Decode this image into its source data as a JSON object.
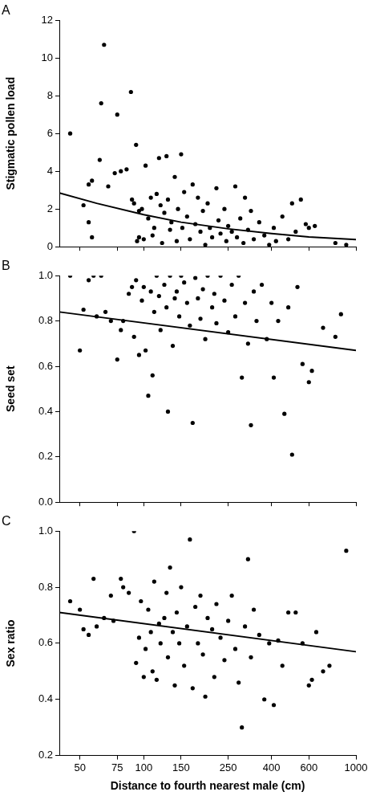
{
  "chart_data": [
    {
      "type": "scatter",
      "title": "A",
      "y_label": "Stigmatic pollen load",
      "log": "x",
      "grid": false,
      "tick_labels": "y",
      "xlim": [
        40,
        1000
      ],
      "xticks": [
        50,
        75,
        100,
        150,
        250,
        400,
        600,
        1000
      ],
      "ylim": [
        0,
        12
      ],
      "yticks": [
        0,
        2,
        4,
        6,
        8,
        10,
        12
      ],
      "series": [
        {
          "type": "scatter",
          "marker": "circle",
          "color": "#000000",
          "x": [
            45,
            52,
            55,
            57,
            55,
            57,
            62,
            63,
            65,
            68,
            73,
            75,
            78,
            83,
            87,
            88,
            90,
            92,
            93,
            95,
            95,
            98,
            100,
            102,
            105,
            108,
            110,
            112,
            115,
            118,
            120,
            122,
            125,
            128,
            130,
            133,
            135,
            140,
            143,
            145,
            150,
            152,
            155,
            160,
            165,
            170,
            175,
            180,
            185,
            190,
            195,
            200,
            205,
            210,
            220,
            225,
            230,
            240,
            245,
            250,
            260,
            270,
            275,
            285,
            295,
            300,
            310,
            320,
            330,
            350,
            370,
            390,
            410,
            420,
            450,
            480,
            500,
            520,
            550,
            580,
            600,
            640,
            800,
            900
          ],
          "values": [
            6.0,
            2.2,
            3.3,
            3.5,
            1.3,
            0.5,
            4.6,
            7.6,
            10.7,
            3.2,
            3.9,
            7.0,
            4.0,
            4.1,
            8.2,
            2.5,
            2.3,
            5.4,
            0.3,
            0.5,
            1.9,
            2.0,
            0.4,
            4.3,
            1.5,
            2.6,
            0.6,
            1.0,
            2.8,
            4.7,
            2.2,
            0.2,
            1.8,
            4.8,
            2.5,
            0.9,
            1.3,
            3.7,
            0.3,
            2.0,
            4.9,
            1.0,
            2.9,
            1.6,
            0.4,
            3.3,
            1.2,
            2.6,
            0.8,
            1.9,
            0.1,
            2.3,
            1.0,
            0.5,
            3.1,
            1.4,
            0.7,
            2.0,
            0.3,
            1.1,
            0.8,
            3.2,
            0.5,
            1.5,
            0.2,
            2.6,
            0.9,
            1.9,
            0.4,
            1.3,
            0.6,
            0.1,
            1.0,
            0.3,
            1.6,
            0.4,
            2.3,
            0.8,
            2.5,
            1.2,
            1.0,
            1.1,
            0.2,
            0.1
          ]
        },
        {
          "type": "line",
          "line_style": "solid",
          "color": "#000000",
          "x": [
            40,
            60,
            100,
            150,
            250,
            400,
            600,
            1000
          ],
          "values": [
            2.85,
            2.3,
            1.7,
            1.3,
            0.95,
            0.7,
            0.52,
            0.38
          ]
        }
      ]
    },
    {
      "type": "scatter",
      "title": "B",
      "y_label": "Seed set",
      "log": "x",
      "grid": false,
      "tick_labels": "y",
      "xlim": [
        40,
        1000
      ],
      "xticks": [
        50,
        75,
        100,
        150,
        250,
        400,
        600,
        1000
      ],
      "ylim": [
        0,
        1
      ],
      "yticks": [
        {
          "value": 0,
          "label": "0.0"
        },
        0.2,
        0.4,
        0.6,
        0.8,
        {
          "value": 1,
          "label": "1.0"
        }
      ],
      "series": [
        {
          "type": "scatter",
          "marker": "circle",
          "color": "#000000",
          "x": [
            45,
            50,
            52,
            55,
            58,
            60,
            63,
            66,
            70,
            75,
            78,
            80,
            85,
            88,
            90,
            92,
            95,
            98,
            100,
            102,
            105,
            108,
            110,
            112,
            115,
            118,
            120,
            125,
            128,
            130,
            133,
            137,
            140,
            143,
            147,
            150,
            155,
            160,
            165,
            170,
            175,
            180,
            185,
            190,
            195,
            200,
            210,
            215,
            220,
            230,
            240,
            250,
            260,
            270,
            280,
            290,
            300,
            310,
            320,
            330,
            340,
            360,
            380,
            400,
            410,
            430,
            460,
            480,
            500,
            530,
            560,
            600,
            620,
            700,
            800,
            850
          ],
          "values": [
            1.0,
            0.67,
            0.85,
            0.98,
            1.0,
            0.82,
            1.0,
            0.84,
            0.8,
            0.63,
            0.76,
            0.8,
            0.92,
            0.95,
            0.73,
            0.98,
            0.65,
            0.89,
            0.95,
            0.67,
            0.47,
            0.93,
            0.56,
            0.84,
            1.0,
            0.91,
            0.76,
            0.96,
            0.86,
            0.4,
            1.0,
            0.69,
            0.9,
            0.93,
            0.82,
            1.0,
            0.97,
            0.88,
            0.78,
            0.35,
            0.99,
            0.9,
            0.81,
            0.94,
            0.72,
            1.0,
            0.86,
            0.92,
            0.79,
            1.0,
            0.89,
            0.75,
            0.96,
            0.82,
            1.0,
            0.55,
            0.88,
            0.7,
            0.34,
            0.93,
            0.8,
            0.96,
            0.72,
            0.88,
            0.55,
            0.8,
            0.39,
            0.86,
            0.21,
            0.95,
            0.61,
            0.53,
            0.58,
            0.77,
            0.73,
            0.83
          ]
        },
        {
          "type": "line",
          "line_style": "solid",
          "color": "#000000",
          "x": [
            40,
            1000
          ],
          "values": [
            0.84,
            0.67
          ]
        }
      ]
    },
    {
      "type": "scatter",
      "title": "C",
      "y_label": "Sex ratio",
      "x_label": "Distance to fourth nearest male (cm)",
      "log": "x",
      "grid": false,
      "xlim": [
        40,
        1000
      ],
      "xticks": [
        50,
        75,
        100,
        150,
        250,
        400,
        600,
        1000
      ],
      "ylim": [
        0.2,
        1
      ],
      "yticks": [
        0.2,
        0.4,
        0.6,
        0.8,
        {
          "value": 1,
          "label": "1.0"
        }
      ],
      "series": [
        {
          "type": "scatter",
          "marker": "circle",
          "color": "#000000",
          "x": [
            45,
            50,
            52,
            55,
            58,
            60,
            65,
            70,
            72,
            78,
            80,
            85,
            90,
            92,
            95,
            97,
            100,
            102,
            105,
            108,
            110,
            112,
            115,
            118,
            120,
            125,
            128,
            130,
            133,
            137,
            140,
            143,
            147,
            150,
            155,
            160,
            165,
            170,
            175,
            180,
            185,
            190,
            195,
            200,
            210,
            215,
            220,
            230,
            240,
            250,
            260,
            270,
            280,
            290,
            300,
            310,
            320,
            330,
            350,
            370,
            390,
            410,
            430,
            450,
            480,
            520,
            560,
            600,
            620,
            650,
            700,
            750,
            900
          ],
          "values": [
            0.75,
            0.72,
            0.65,
            0.63,
            0.83,
            0.66,
            0.69,
            0.77,
            0.68,
            0.83,
            0.8,
            0.78,
            1.0,
            0.53,
            0.62,
            0.75,
            0.48,
            0.58,
            0.72,
            0.64,
            0.5,
            0.82,
            0.47,
            0.67,
            0.6,
            0.69,
            0.78,
            0.55,
            0.87,
            0.64,
            0.45,
            0.71,
            0.6,
            0.8,
            0.52,
            0.66,
            0.97,
            0.44,
            0.73,
            0.6,
            0.77,
            0.56,
            0.41,
            0.69,
            0.65,
            0.48,
            0.74,
            0.62,
            0.54,
            0.68,
            0.77,
            0.58,
            0.46,
            0.3,
            0.66,
            0.9,
            0.55,
            0.72,
            0.63,
            0.4,
            0.6,
            0.38,
            0.61,
            0.52,
            0.71,
            0.71,
            0.6,
            0.45,
            0.47,
            0.64,
            0.5,
            0.52,
            0.93
          ]
        },
        {
          "type": "line",
          "line_style": "solid",
          "color": "#000000",
          "x": [
            40,
            1000
          ],
          "values": [
            0.71,
            0.57
          ]
        }
      ]
    }
  ]
}
